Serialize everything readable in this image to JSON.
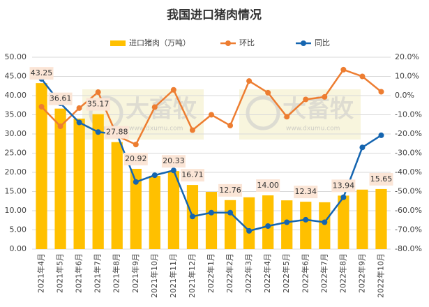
{
  "chart_data": {
    "type": "bar",
    "title": "我国进口猪肉情况",
    "watermark": [
      "大畜牧",
      "www.dxumu.com"
    ],
    "categories": [
      "2021年4月",
      "2021年5月",
      "2021年6月",
      "2021年7月",
      "2021年8月",
      "2021年9月",
      "2021年10月",
      "2021年11月",
      "2021年12月",
      "2022年1月",
      "2022年2月",
      "2022年3月",
      "2022年4月",
      "2022年5月",
      "2022年6月",
      "2022年7月",
      "2022年8月",
      "2022年9月",
      "2022年10月"
    ],
    "series": [
      {
        "name": "进口猪肉（万吨）",
        "type": "bar",
        "color": "#ffc000",
        "values": [
          43.25,
          36.61,
          34,
          35.17,
          27.88,
          20.92,
          19.1,
          20.33,
          16.71,
          14.9,
          12.76,
          13.5,
          14.0,
          12.7,
          12.34,
          12.2,
          13.94,
          15.5,
          15.65
        ],
        "value_labels": [
          "43.25",
          "36.61",
          null,
          "35.17",
          "27.88",
          "20.92",
          null,
          "20.33",
          "16.71",
          null,
          "12.76",
          null,
          "14.00",
          null,
          "12.34",
          null,
          "13.94",
          null,
          "15.65"
        ]
      },
      {
        "name": "环比",
        "type": "line",
        "axis": "y2",
        "color": "#ed7d31",
        "values": [
          -5.8,
          -16,
          -6.5,
          1.8,
          -21,
          -25.5,
          -6,
          3,
          -18,
          -10,
          -15.6,
          7.6,
          1.5,
          -11,
          -2,
          -0.7,
          13.5,
          10,
          2
        ]
      },
      {
        "name": "同比",
        "type": "line",
        "axis": "y2",
        "color": "#1565b0",
        "values": [
          8.7,
          -4,
          -14,
          -19,
          -20,
          -45,
          -41.5,
          -39,
          -63,
          -61,
          -61,
          -70.5,
          -68,
          -66,
          -64.7,
          -66,
          -53,
          -27,
          -20.7
        ]
      }
    ],
    "ylim": [
      0,
      50
    ],
    "yticks": [
      {
        "value": 0,
        "label": "0.00"
      },
      {
        "value": 5,
        "label": "5.00"
      },
      {
        "value": 10,
        "label": "10.00"
      },
      {
        "value": 15,
        "label": "15.00"
      },
      {
        "value": 20,
        "label": "20.00"
      },
      {
        "value": 25,
        "label": "25.00"
      },
      {
        "value": 30,
        "label": "30.00"
      },
      {
        "value": 35,
        "label": "35.00"
      },
      {
        "value": 40,
        "label": "40.00"
      },
      {
        "value": 45,
        "label": "45.00"
      },
      {
        "value": 50,
        "label": "50.00"
      }
    ],
    "y2lim": [
      -80,
      20
    ],
    "y2ticks": [
      {
        "value": -80,
        "label": "-80.0%"
      },
      {
        "value": -70,
        "label": "-70.0%"
      },
      {
        "value": -60,
        "label": "-60.0%"
      },
      {
        "value": -50,
        "label": "-50.0%"
      },
      {
        "value": -40,
        "label": "-40.0%"
      },
      {
        "value": -30,
        "label": "-30.0%"
      },
      {
        "value": -20,
        "label": "-20.0%"
      },
      {
        "value": -10,
        "label": "-10.0%"
      },
      {
        "value": 0,
        "label": "0.0%"
      },
      {
        "value": 10,
        "label": "10.0%"
      },
      {
        "value": 20,
        "label": "20.0%"
      }
    ],
    "grid": true,
    "legend": "top"
  }
}
